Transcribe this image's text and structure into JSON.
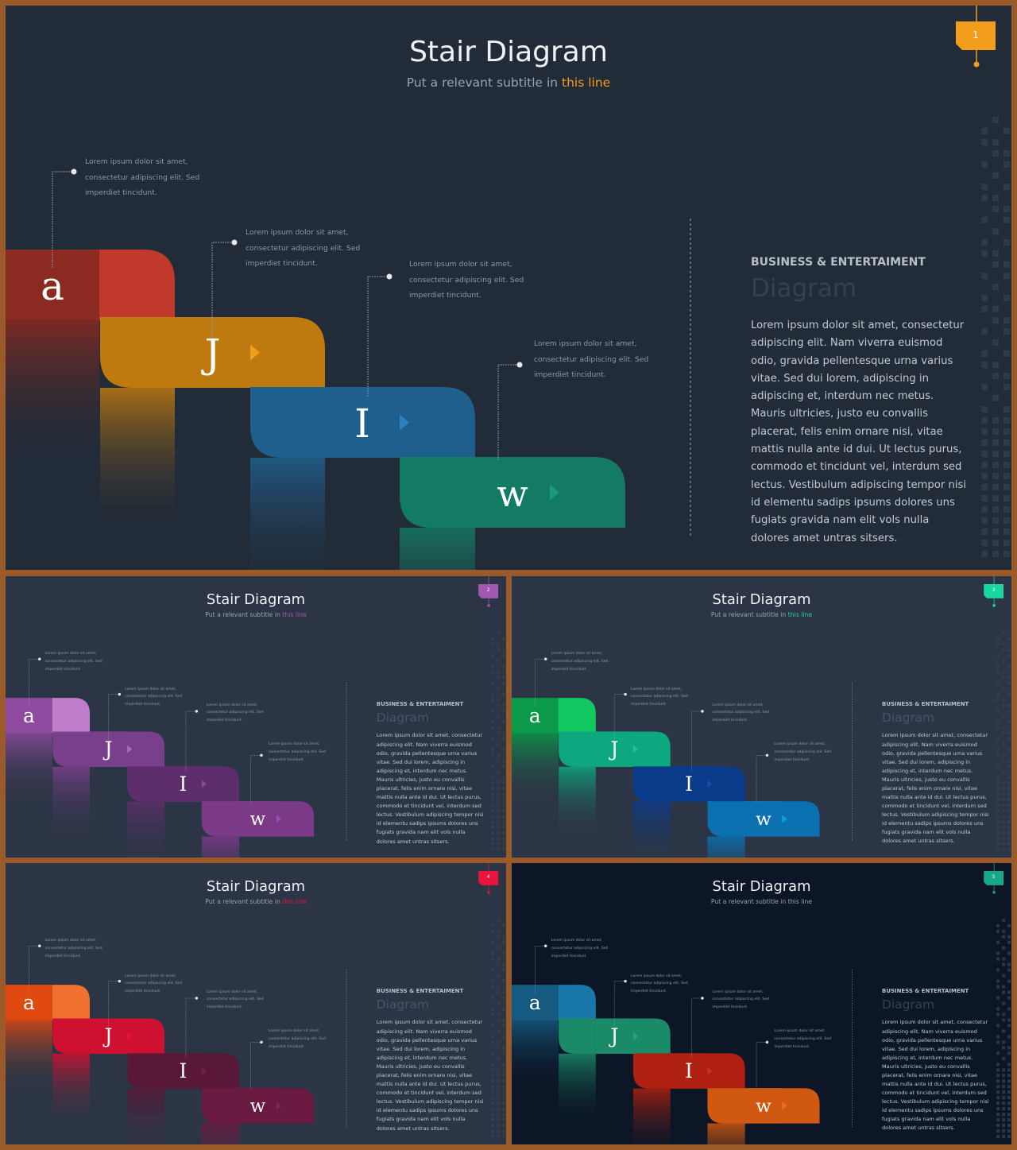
{
  "slides": [
    {
      "id": 1,
      "title": "Stair Diagram",
      "subtitle_prefix": "Put a relevant subtitle in ",
      "subtitle_highlight": "this line",
      "page_number": "1",
      "colors": {
        "bg": "#222b38",
        "accent": "#f29e1c",
        "steps": [
          [
            "#8b2a20",
            "#c0392b"
          ],
          [
            "#bf7a0f",
            "#f29e1c"
          ],
          [
            "#1f5f8e",
            "#2a80c0"
          ],
          [
            "#137a63",
            "#199a7c"
          ]
        ]
      },
      "letters": [
        "a",
        "J",
        "I",
        "w"
      ],
      "callouts": [
        "Lorem ipsum dolor sit amet,\nconsectetur adipiscing elit. Sed\nimperdiet tincidunt.",
        "Lorem ipsum dolor sit amet,\nconsectetur adipiscing elit. Sed\nimperdiet tincidunt.",
        "Lorem ipsum dolor sit amet,\nconsectetur adipiscing elit. Sed\nimperdiet tincidunt.",
        "Lorem ipsum dolor sit amet,\nconsectetur adipiscing elit. Sed\nimperdiet tincidunt."
      ],
      "right_heading": "BUSINESS & ENTERTAIMENT",
      "right_big": "Diagram",
      "right_body": "Lorem ipsum dolor sit amet, consectetur adipiscing elit. Nam viverra euismod odio, gravida pellentesque urna varius vitae. Sed dui lorem, adipiscing in adipiscing et, interdum nec metus. Mauris ultricies, justo eu convallis placerat, felis enim ornare nisi, vitae mattis nulla ante id dui. Ut lectus purus, commodo et tincidunt vel, interdum sed lectus. Vestibulum adipiscing tempor nisi id elementu sadips ipsums dolores uns fugiats gravida nam elit vols nulla dolores amet untras sitsers."
    },
    {
      "id": 2,
      "title": "Stair Diagram",
      "subtitle_prefix": "Put a relevant subtitle in ",
      "subtitle_highlight": "this line",
      "page_number": "2",
      "colors": {
        "bg": "#2c3545",
        "accent": "#a058b0",
        "steps": [
          [
            "#8e4a9e",
            "#c07dcc"
          ],
          [
            "#7a3f8c",
            "#b06ac0"
          ],
          [
            "#5e2e6c",
            "#8a4a9a"
          ],
          [
            "#7a3a88",
            "#a04cb0"
          ]
        ]
      },
      "letters": [
        "a",
        "J",
        "I",
        "w"
      ],
      "callouts": [
        "Lorem ipsum dolor sit amet,\nconsectetur adipiscing elit. Sed\nimperdiet tincidunt.",
        "Lorem ipsum dolor sit amet,\nconsectetur adipiscing elit. Sed\nimperdiet tincidunt.",
        "Lorem ipsum dolor sit amet,\nconsectetur adipiscing elit. Sed\nimperdiet tincidunt.",
        "Lorem ipsum dolor sit amet,\nconsectetur adipiscing elit. Sed\nimperdiet tincidunt."
      ],
      "right_heading": "BUSINESS & ENTERTAIMENT",
      "right_big": "Diagram",
      "right_body": "Lorem ipsum dolor sit amet, consectetur adipiscing elit. Nam viverra euismod odio, gravida pellentesque urna varius vitae. Sed dui lorem, adipiscing in adipiscing et, interdum nec metus. Mauris ultricies, justo eu convallis placerat, felis enim ornare nisi, vitae mattis nulla ante id dui. Ut lectus purus, commodo et tincidunt vel, interdum sed lectus. Vestibulum adipiscing tempor nisi id elementu sadips ipsums dolores uns fugiats gravida nam elit vols nulla dolores amet untras sitsers."
    },
    {
      "id": 3,
      "title": "Stair Diagram",
      "subtitle_prefix": "Put a relevant subtitle in ",
      "subtitle_highlight": "this line",
      "page_number": "3",
      "colors": {
        "bg": "#2c3545",
        "accent": "#18d8a0",
        "steps": [
          [
            "#0a9a4a",
            "#12c860"
          ],
          [
            "#0ea880",
            "#16c89a"
          ],
          [
            "#0a3a8a",
            "#1050b0"
          ],
          [
            "#0a70b0",
            "#10a0e0"
          ]
        ]
      },
      "letters": [
        "a",
        "J",
        "I",
        "w"
      ],
      "callouts": [
        "Lorem ipsum dolor sit amet,\nconsectetur adipiscing elit. Sed\nimperdiet tincidunt.",
        "Lorem ipsum dolor sit amet,\nconsectetur adipiscing elit. Sed\nimperdiet tincidunt.",
        "Lorem ipsum dolor sit amet,\nconsectetur adipiscing elit. Sed\nimperdiet tincidunt.",
        "Lorem ipsum dolor sit amet,\nconsectetur adipiscing elit. Sed\nimperdiet tincidunt."
      ],
      "right_heading": "BUSINESS & ENTERTAIMENT",
      "right_big": "Diagram",
      "right_body": "Lorem ipsum dolor sit amet, consectetur adipiscing elit. Nam viverra euismod odio, gravida pellentesque urna varius vitae. Sed dui lorem, adipiscing in adipiscing et, interdum nec metus. Mauris ultricies, justo eu convallis placerat, felis enim ornare nisi, vitae mattis nulla ante id dui. Ut lectus purus, commodo et tincidunt vel, interdum sed lectus. Vestibulum adipiscing tempor nisi id elementu sadips ipsums dolores uns fugiats gravida nam elit vols nulla dolores amet untras sitsers."
    },
    {
      "id": 4,
      "title": "Stair Diagram",
      "subtitle_prefix": "Put a relevant subtitle in ",
      "subtitle_highlight": "this line",
      "page_number": "4",
      "colors": {
        "bg": "#2c3545",
        "accent": "#e8143c",
        "steps": [
          [
            "#e04a10",
            "#f07030"
          ],
          [
            "#d01030",
            "#e8143c"
          ],
          [
            "#5a1838",
            "#7a2048"
          ],
          [
            "#6a1a40",
            "#8a2450"
          ]
        ]
      },
      "letters": [
        "a",
        "J",
        "I",
        "w"
      ],
      "callouts": [
        "Lorem ipsum dolor sit amet,\nconsectetur adipiscing elit. Sed\nimperdiet tincidunt.",
        "Lorem ipsum dolor sit amet,\nconsectetur adipiscing elit. Sed\nimperdiet tincidunt.",
        "Lorem ipsum dolor sit amet,\nconsectetur adipiscing elit. Sed\nimperdiet tincidunt.",
        "Lorem ipsum dolor sit amet,\nconsectetur adipiscing elit. Sed\nimperdiet tincidunt."
      ],
      "right_heading": "BUSINESS & ENTERTAIMENT",
      "right_big": "Diagram",
      "right_body": "Lorem ipsum dolor sit amet, consectetur adipiscing elit. Nam viverra euismod odio, gravida pellentesque urna varius vitae. Sed dui lorem, adipiscing in adipiscing et, interdum nec metus. Mauris ultricies, justo eu convallis placerat, felis enim ornare nisi, vitae mattis nulla ante id dui. Ut lectus purus, commodo et tincidunt vel, interdum sed lectus. Vestibulum adipiscing tempor nisi id elementu sadips ipsums dolores uns fugiats gravida nam elit vols nulla dolores amet untras sitsers."
    },
    {
      "id": 5,
      "title": "Stair Diagram",
      "subtitle_prefix": "Put a relevant subtitle in this line",
      "subtitle_highlight": "",
      "page_number": "5",
      "colors": {
        "bg": "#0c1626",
        "accent": "#16a88a",
        "steps": [
          [
            "#155a80",
            "#1a78a8"
          ],
          [
            "#1a8a68",
            "#22a880"
          ],
          [
            "#b02010",
            "#d0301a"
          ],
          [
            "#d05810",
            "#f07018"
          ]
        ]
      },
      "letters": [
        "a",
        "J",
        "I",
        "w"
      ],
      "callouts": [
        "Lorem ipsum dolor sit amet,\nconsectetur adipiscing elit. Sed\nimperdiet tincidunt.",
        "Lorem ipsum dolor sit amet,\nconsectetur adipiscing elit. Sed\nimperdiet tincidunt.",
        "Lorem ipsum dolor sit amet,\nconsectetur adipiscing elit. Sed\nimperdiet tincidunt.",
        "Lorem ipsum dolor sit amet,\nconsectetur adipiscing elit. Sed\nimperdiet tincidunt."
      ],
      "right_heading": "BUSINESS & ENTERTAIMENT",
      "right_big": "Diagram",
      "right_body": "Lorem ipsum dolor sit amet, consectetur adipiscing elit. Nam viverra euismod odio, gravida pellentesque urna varius vitae. Sed dui lorem, adipiscing in adipiscing et, interdum nec metus. Mauris ultricies, justo eu convallis placerat, felis enim ornare nisi, vitae mattis nulla ante id dui. Ut lectus purus, commodo et tincidunt vel, interdum sed lectus. Vestibulum adipiscing tempor nisi id elementu sadips ipsums dolores uns fugiats gravida nam elit vols nulla dolores amet untras sitsers."
    }
  ]
}
